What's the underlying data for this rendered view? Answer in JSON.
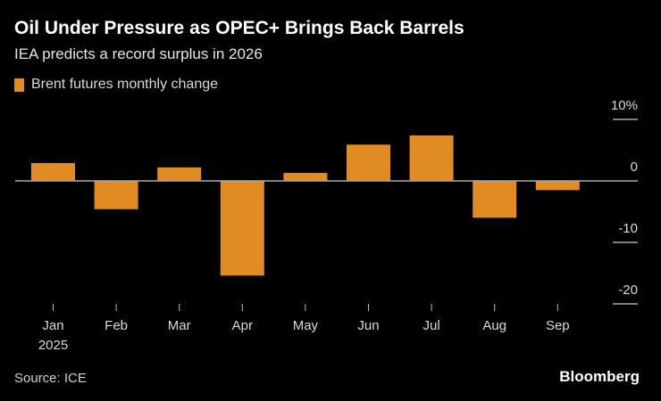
{
  "chart_data": {
    "type": "bar",
    "title": "Oil Under Pressure as OPEC+ Brings Back Barrels",
    "subtitle": "IEA predicts a record surplus in 2026",
    "categories": [
      "Jan",
      "Feb",
      "Mar",
      "Apr",
      "May",
      "Jun",
      "Jul",
      "Aug",
      "Sep"
    ],
    "year_label": "2025",
    "series": [
      {
        "name": "Brent futures monthly change",
        "color": "#e08c23",
        "values": [
          2.9,
          -4.6,
          2.2,
          -15.4,
          1.3,
          5.9,
          7.4,
          -6.0,
          -1.5
        ]
      }
    ],
    "ylim": [
      -20,
      10
    ],
    "yticks": [
      10,
      0,
      -10,
      -20
    ],
    "ytick_labels": [
      "10%",
      "0",
      "-10",
      "-20"
    ],
    "grid": false,
    "legend": "top-left",
    "source": "Source: ICE",
    "brand": "Bloomberg"
  }
}
